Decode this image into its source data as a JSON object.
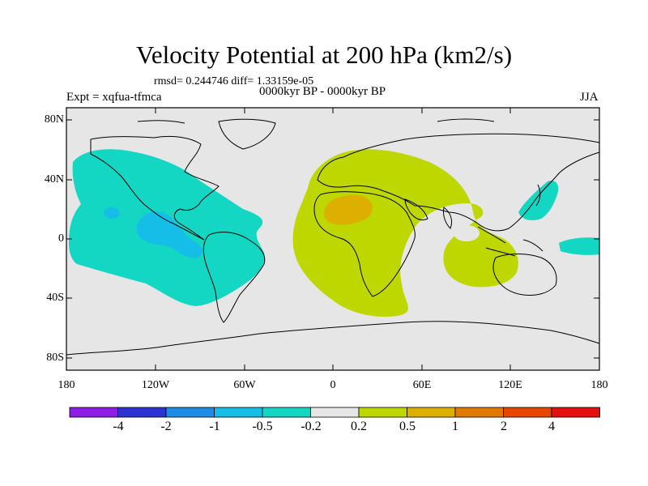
{
  "title": "Velocity Potential at 200 hPa (km2/s)",
  "stats": "rmsd= 0.244746 diff= 1.33159e-05",
  "left_label": "Expt = xqfua-tfmca",
  "center_label": "0000kyr BP - 0000kyr BP",
  "right_label": "JJA",
  "lat_ticks": [
    "80N",
    "40N",
    "0",
    "40S",
    "80S"
  ],
  "lon_ticks": [
    "180",
    "120W",
    "60W",
    "0",
    "60E",
    "120E",
    "180"
  ],
  "colorbar": {
    "labels": [
      "-4",
      "-2",
      "-1",
      "-0.5",
      "-0.2",
      "0.2",
      "0.5",
      "1",
      "2",
      "4"
    ],
    "colors": [
      "#8c1ee6",
      "#2d32d2",
      "#1e8ce6",
      "#14bee6",
      "#14d7c3",
      "#e6e6e6",
      "#bed700",
      "#dcaf00",
      "#e17800",
      "#e64600",
      "#e60f0f"
    ]
  },
  "colors": {
    "background": "#e6e6e6",
    "negative_weak": "#14d7c3",
    "negative_mid": "#14bee6",
    "positive_weak": "#bed700",
    "positive_mid": "#dcaf00"
  }
}
